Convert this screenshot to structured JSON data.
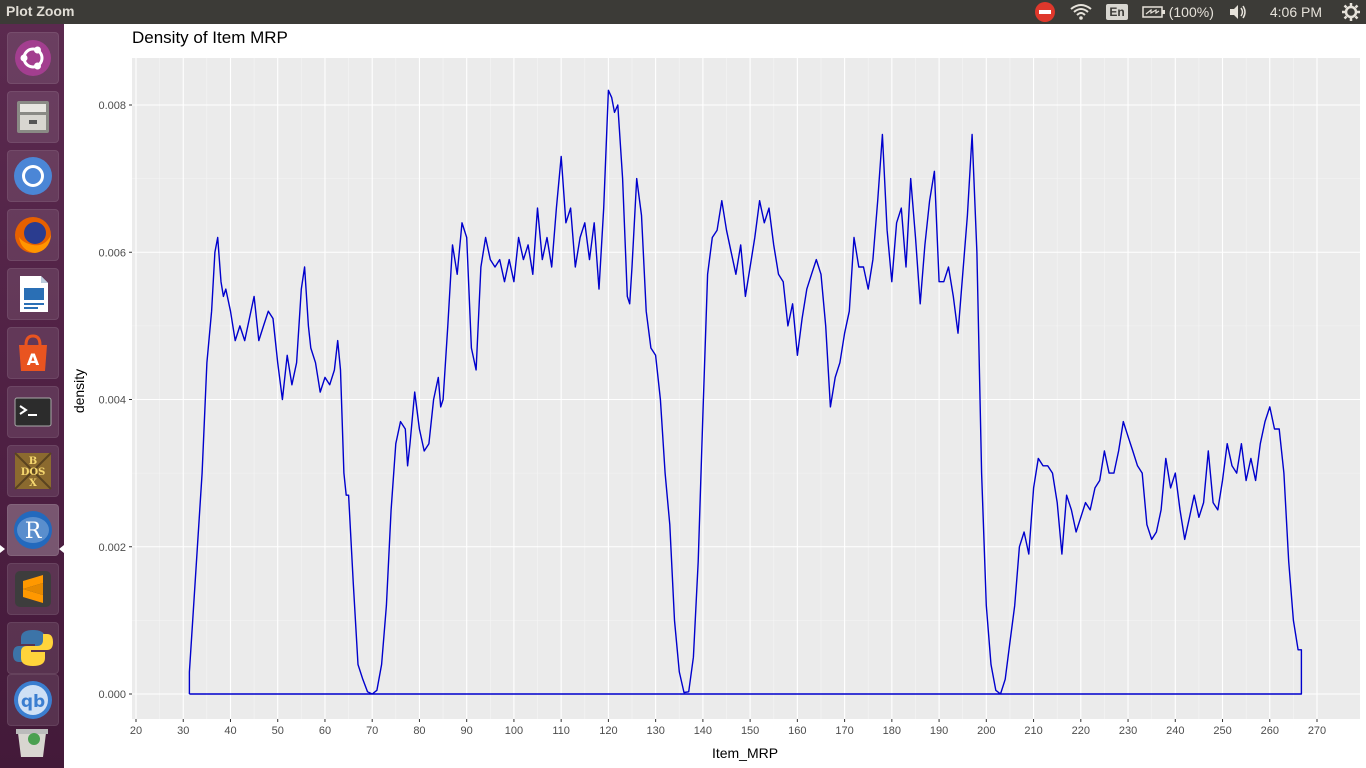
{
  "window": {
    "title": "Plot Zoom"
  },
  "tray": {
    "language": "En",
    "battery": "(100%)",
    "time": "4:06 PM"
  },
  "launcher": {
    "items": [
      {
        "name": "ubuntu-dash-icon"
      },
      {
        "name": "files-icon"
      },
      {
        "name": "chromium-icon"
      },
      {
        "name": "firefox-icon"
      },
      {
        "name": "libreoffice-writer-icon"
      },
      {
        "name": "software-center-icon"
      },
      {
        "name": "terminal-icon"
      },
      {
        "name": "dosbox-icon"
      },
      {
        "name": "r-icon"
      },
      {
        "name": "sublime-text-icon"
      },
      {
        "name": "python-icon"
      },
      {
        "name": "qbittorrent-icon"
      },
      {
        "name": "trash-icon"
      }
    ],
    "active_index": 8
  },
  "chart_data": {
    "type": "line",
    "title": "Density of Item MRP",
    "xlabel": "Item_MRP",
    "ylabel": "density",
    "xlim": [
      20,
      270
    ],
    "ylim": [
      0,
      0.008
    ],
    "x_ticks": [
      "20",
      "30",
      "40",
      "50",
      "60",
      "70",
      "80",
      "90",
      "100",
      "110",
      "120",
      "130",
      "140",
      "150",
      "160",
      "170",
      "180",
      "190",
      "200",
      "210",
      "220",
      "230",
      "240",
      "250",
      "260",
      "270"
    ],
    "y_ticks": [
      "0.000",
      "0.002",
      "0.004",
      "0.006",
      "0.008"
    ],
    "grid": true,
    "background": "#ebebeb",
    "line_color": "#0000cd",
    "series": [
      {
        "values": [
          [
            31.3,
            0.0
          ],
          [
            31.3,
            0.0003
          ],
          [
            32,
            0.001
          ],
          [
            33,
            0.002
          ],
          [
            34,
            0.003
          ],
          [
            35,
            0.0045
          ],
          [
            36,
            0.0052
          ],
          [
            36.7,
            0.006
          ],
          [
            37.3,
            0.0062
          ],
          [
            38,
            0.0056
          ],
          [
            38.5,
            0.0054
          ],
          [
            39,
            0.0055
          ],
          [
            40,
            0.0052
          ],
          [
            41,
            0.0048
          ],
          [
            42,
            0.005
          ],
          [
            43,
            0.0048
          ],
          [
            44,
            0.0051
          ],
          [
            45,
            0.0054
          ],
          [
            46,
            0.0048
          ],
          [
            47,
            0.005
          ],
          [
            48,
            0.0052
          ],
          [
            49,
            0.0051
          ],
          [
            50,
            0.0045
          ],
          [
            51,
            0.004
          ],
          [
            52,
            0.0046
          ],
          [
            53,
            0.0042
          ],
          [
            54,
            0.0045
          ],
          [
            55,
            0.0055
          ],
          [
            55.7,
            0.0058
          ],
          [
            56.5,
            0.005
          ],
          [
            57,
            0.0047
          ],
          [
            58,
            0.0045
          ],
          [
            59,
            0.0041
          ],
          [
            60,
            0.0043
          ],
          [
            61,
            0.0042
          ],
          [
            62,
            0.0044
          ],
          [
            62.7,
            0.0048
          ],
          [
            63.3,
            0.0044
          ],
          [
            64,
            0.003
          ],
          [
            64.5,
            0.0027
          ],
          [
            65,
            0.0027
          ],
          [
            66,
            0.0015
          ],
          [
            67,
            0.0004
          ],
          [
            68,
            0.0002
          ],
          [
            69,
            3e-05
          ],
          [
            70,
            0.0
          ],
          [
            71,
            5e-05
          ],
          [
            72,
            0.0004
          ],
          [
            73,
            0.0012
          ],
          [
            74,
            0.0025
          ],
          [
            75,
            0.0034
          ],
          [
            76,
            0.0037
          ],
          [
            77,
            0.0036
          ],
          [
            77.5,
            0.0031
          ],
          [
            78,
            0.0034
          ],
          [
            79,
            0.0041
          ],
          [
            80,
            0.0036
          ],
          [
            81,
            0.0033
          ],
          [
            82,
            0.0034
          ],
          [
            83,
            0.004
          ],
          [
            84,
            0.0043
          ],
          [
            84.5,
            0.0039
          ],
          [
            85,
            0.004
          ],
          [
            86,
            0.005
          ],
          [
            87,
            0.0061
          ],
          [
            88,
            0.0057
          ],
          [
            89,
            0.0064
          ],
          [
            90,
            0.0062
          ],
          [
            91,
            0.0047
          ],
          [
            92,
            0.0044
          ],
          [
            93,
            0.0058
          ],
          [
            94,
            0.0062
          ],
          [
            95,
            0.0059
          ],
          [
            96,
            0.0058
          ],
          [
            97,
            0.0059
          ],
          [
            98,
            0.0056
          ],
          [
            99,
            0.0059
          ],
          [
            100,
            0.0056
          ],
          [
            101,
            0.0062
          ],
          [
            102,
            0.0059
          ],
          [
            103,
            0.0061
          ],
          [
            104,
            0.0057
          ],
          [
            105,
            0.0066
          ],
          [
            106,
            0.0059
          ],
          [
            107,
            0.0062
          ],
          [
            108,
            0.0058
          ],
          [
            109,
            0.0066
          ],
          [
            110,
            0.0073
          ],
          [
            111,
            0.0064
          ],
          [
            112,
            0.0066
          ],
          [
            113,
            0.0058
          ],
          [
            114,
            0.0062
          ],
          [
            115,
            0.0064
          ],
          [
            116,
            0.0059
          ],
          [
            117,
            0.0064
          ],
          [
            118,
            0.0055
          ],
          [
            119,
            0.0066
          ],
          [
            120,
            0.0082
          ],
          [
            120.7,
            0.0081
          ],
          [
            121.3,
            0.0079
          ],
          [
            122,
            0.008
          ],
          [
            123,
            0.007
          ],
          [
            124,
            0.0054
          ],
          [
            124.5,
            0.0053
          ],
          [
            125,
            0.0058
          ],
          [
            126,
            0.007
          ],
          [
            127,
            0.0065
          ],
          [
            128,
            0.0052
          ],
          [
            129,
            0.0047
          ],
          [
            130,
            0.0046
          ],
          [
            131,
            0.004
          ],
          [
            132,
            0.003
          ],
          [
            133,
            0.0023
          ],
          [
            134,
            0.001
          ],
          [
            135,
            0.0003
          ],
          [
            136,
            2e-05
          ],
          [
            137,
            3e-05
          ],
          [
            138,
            0.0005
          ],
          [
            139,
            0.0018
          ],
          [
            140,
            0.0038
          ],
          [
            141,
            0.0057
          ],
          [
            142,
            0.0062
          ],
          [
            143,
            0.0063
          ],
          [
            144,
            0.0067
          ],
          [
            145,
            0.0063
          ],
          [
            146,
            0.006
          ],
          [
            147,
            0.0057
          ],
          [
            148,
            0.0061
          ],
          [
            149,
            0.0054
          ],
          [
            150,
            0.0058
          ],
          [
            151,
            0.0062
          ],
          [
            152,
            0.0067
          ],
          [
            153,
            0.0064
          ],
          [
            154,
            0.0066
          ],
          [
            155,
            0.0061
          ],
          [
            156,
            0.0057
          ],
          [
            157,
            0.0056
          ],
          [
            158,
            0.005
          ],
          [
            159,
            0.0053
          ],
          [
            160,
            0.0046
          ],
          [
            161,
            0.0051
          ],
          [
            162,
            0.0055
          ],
          [
            163,
            0.0057
          ],
          [
            164,
            0.0059
          ],
          [
            165,
            0.0057
          ],
          [
            166,
            0.005
          ],
          [
            167,
            0.0039
          ],
          [
            168,
            0.0043
          ],
          [
            169,
            0.0045
          ],
          [
            170,
            0.0049
          ],
          [
            171,
            0.0052
          ],
          [
            172,
            0.0062
          ],
          [
            173,
            0.0058
          ],
          [
            174,
            0.0058
          ],
          [
            175,
            0.0055
          ],
          [
            176,
            0.0059
          ],
          [
            177,
            0.0067
          ],
          [
            178,
            0.0076
          ],
          [
            179,
            0.0063
          ],
          [
            180,
            0.0056
          ],
          [
            181,
            0.0064
          ],
          [
            182,
            0.0066
          ],
          [
            183,
            0.0058
          ],
          [
            184,
            0.007
          ],
          [
            185,
            0.0062
          ],
          [
            186,
            0.0053
          ],
          [
            187,
            0.0061
          ],
          [
            188,
            0.0067
          ],
          [
            189,
            0.0071
          ],
          [
            190,
            0.0056
          ],
          [
            191,
            0.0056
          ],
          [
            192,
            0.0058
          ],
          [
            193,
            0.0054
          ],
          [
            194,
            0.0049
          ],
          [
            195,
            0.0057
          ],
          [
            196,
            0.0065
          ],
          [
            197,
            0.0076
          ],
          [
            198,
            0.006
          ],
          [
            199,
            0.003
          ],
          [
            200,
            0.0012
          ],
          [
            201,
            0.0004
          ],
          [
            202,
            5e-05
          ],
          [
            203,
            0.0
          ],
          [
            204,
            0.0002
          ],
          [
            205,
            0.0007
          ],
          [
            206,
            0.0012
          ],
          [
            207,
            0.002
          ],
          [
            208,
            0.0022
          ],
          [
            209,
            0.0019
          ],
          [
            210,
            0.0028
          ],
          [
            211,
            0.0032
          ],
          [
            212,
            0.0031
          ],
          [
            213,
            0.0031
          ],
          [
            214,
            0.003
          ],
          [
            215,
            0.0026
          ],
          [
            216,
            0.0019
          ],
          [
            217,
            0.0027
          ],
          [
            218,
            0.0025
          ],
          [
            219,
            0.0022
          ],
          [
            220,
            0.0024
          ],
          [
            221,
            0.0026
          ],
          [
            222,
            0.0025
          ],
          [
            223,
            0.0028
          ],
          [
            224,
            0.0029
          ],
          [
            225,
            0.0033
          ],
          [
            226,
            0.003
          ],
          [
            227,
            0.003
          ],
          [
            228,
            0.0033
          ],
          [
            229,
            0.0037
          ],
          [
            230,
            0.0035
          ],
          [
            231,
            0.0033
          ],
          [
            232,
            0.0031
          ],
          [
            233,
            0.003
          ],
          [
            234,
            0.0023
          ],
          [
            235,
            0.0021
          ],
          [
            236,
            0.0022
          ],
          [
            237,
            0.0025
          ],
          [
            238,
            0.0032
          ],
          [
            239,
            0.0028
          ],
          [
            240,
            0.003
          ],
          [
            241,
            0.0025
          ],
          [
            242,
            0.0021
          ],
          [
            243,
            0.0024
          ],
          [
            244,
            0.0027
          ],
          [
            245,
            0.0024
          ],
          [
            246,
            0.0026
          ],
          [
            247,
            0.0033
          ],
          [
            248,
            0.0026
          ],
          [
            249,
            0.0025
          ],
          [
            250,
            0.0029
          ],
          [
            251,
            0.0034
          ],
          [
            252,
            0.0031
          ],
          [
            253,
            0.003
          ],
          [
            254,
            0.0034
          ],
          [
            255,
            0.0029
          ],
          [
            256,
            0.0032
          ],
          [
            257,
            0.0029
          ],
          [
            258,
            0.0034
          ],
          [
            259,
            0.0037
          ],
          [
            260,
            0.0039
          ],
          [
            261,
            0.0036
          ],
          [
            262,
            0.0036
          ],
          [
            263,
            0.003
          ],
          [
            264,
            0.0018
          ],
          [
            265,
            0.001
          ],
          [
            266,
            0.0006
          ],
          [
            266.7,
            0.0006
          ],
          [
            266.7,
            0.0
          ],
          [
            31.3,
            0.0
          ]
        ]
      }
    ]
  }
}
